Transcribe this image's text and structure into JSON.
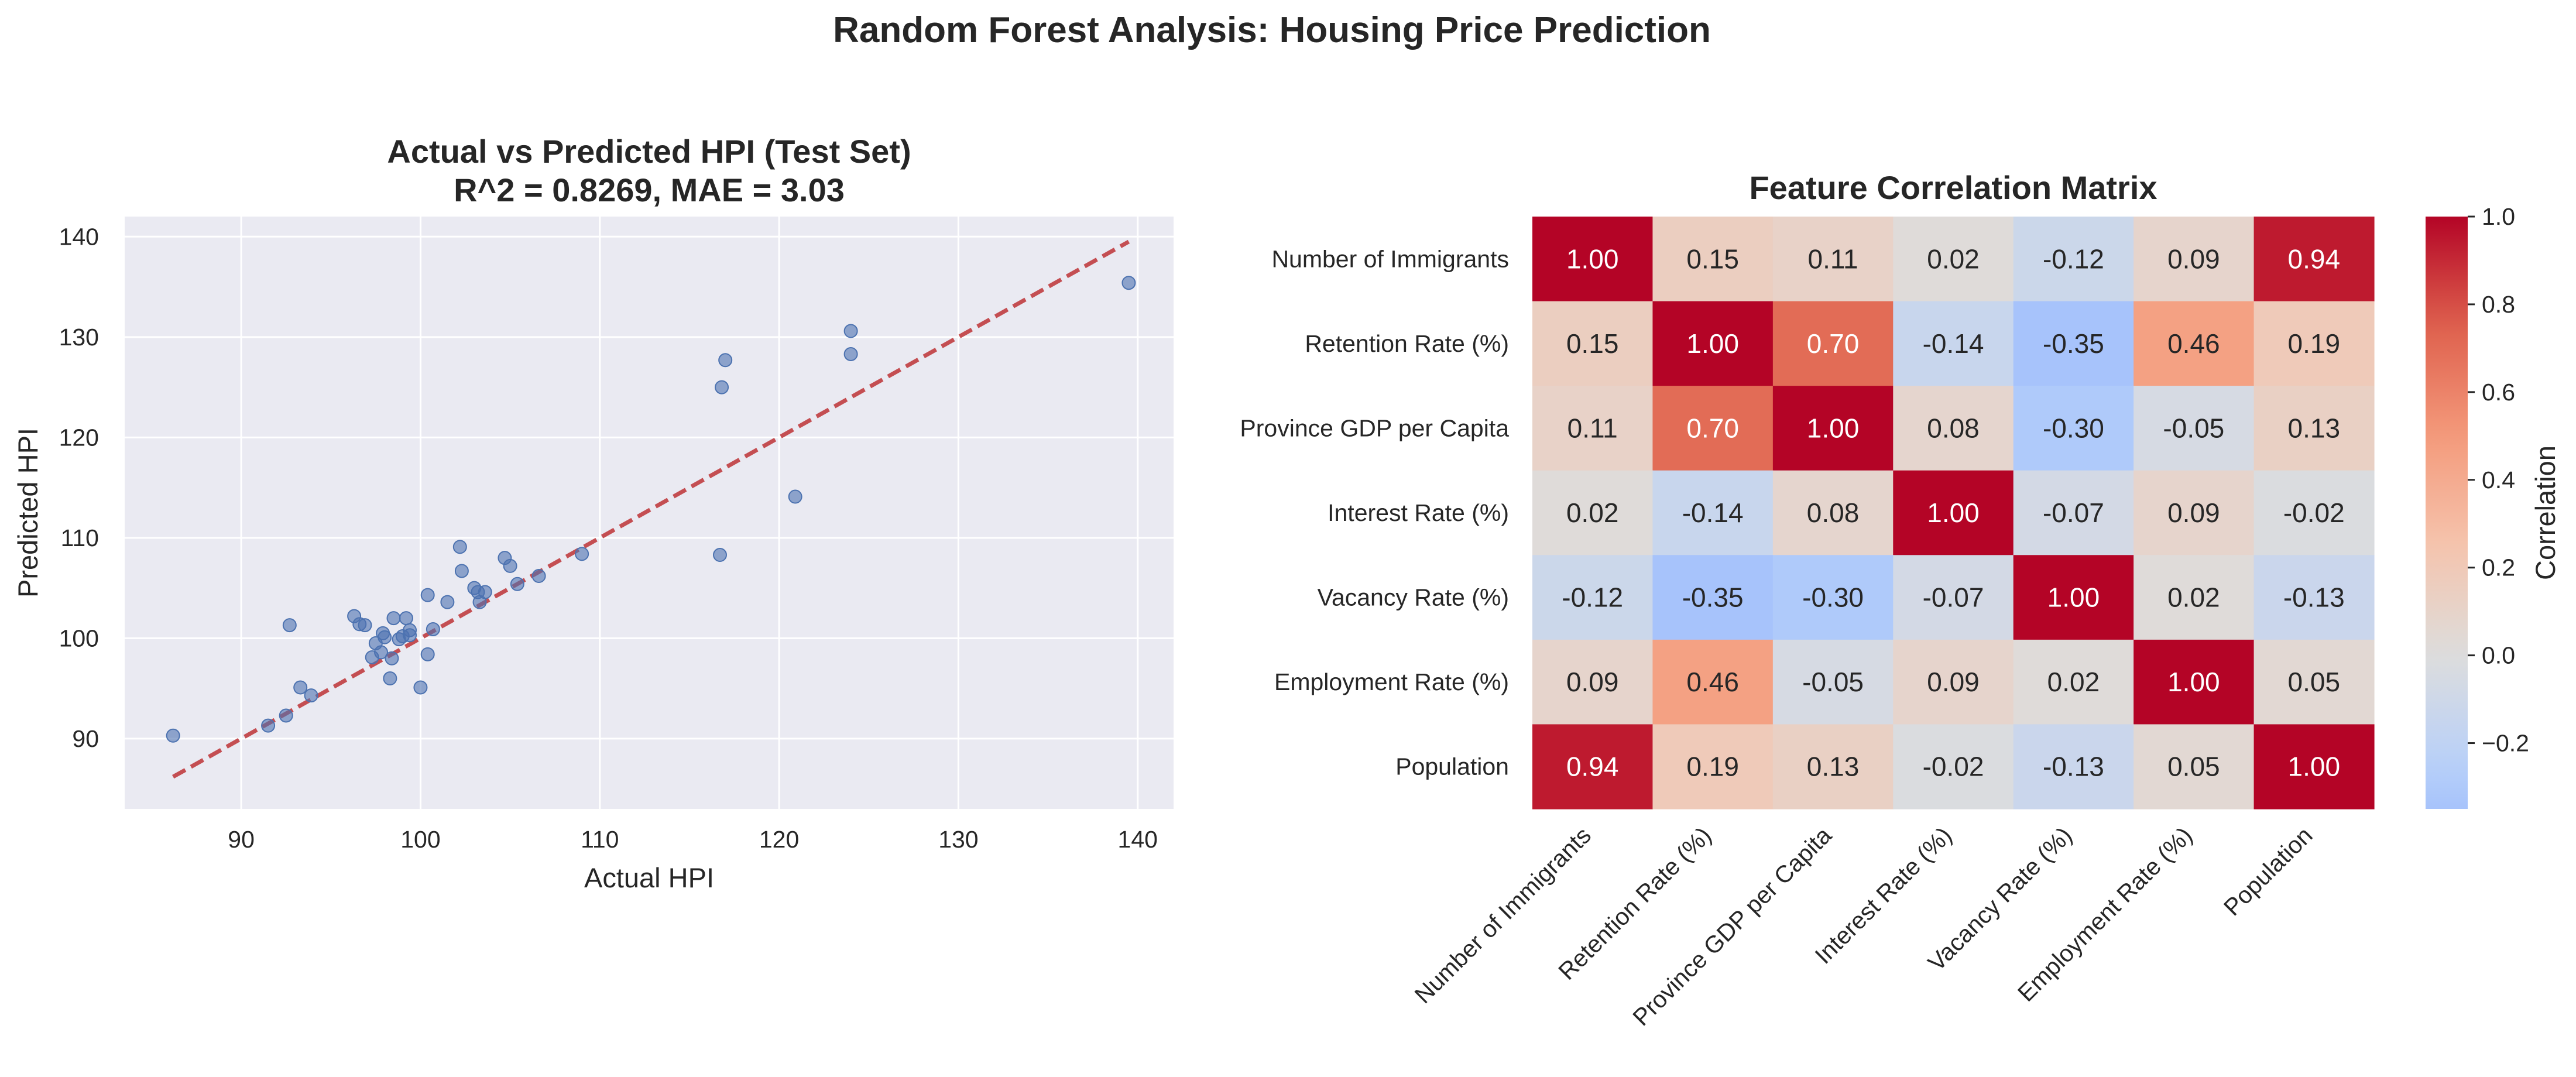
{
  "figure": {
    "suptitle": "Random Forest Analysis: Housing Price Prediction"
  },
  "chart_data": [
    {
      "type": "scatter",
      "title_line1": "Actual vs Predicted HPI (Test Set)",
      "title_line2": "R^2 = 0.8269, MAE = 3.03",
      "xlabel": "Actual HPI",
      "ylabel": "Predicted HPI",
      "xlim": [
        83.5,
        142.0
      ],
      "ylim": [
        83.0,
        142.0
      ],
      "xticks": [
        90,
        100,
        110,
        120,
        130,
        140
      ],
      "yticks": [
        90,
        100,
        110,
        120,
        130,
        140
      ],
      "grid": true,
      "point_color": "#4c72b0",
      "line_color": "#c44e52",
      "reference_line": {
        "style": "dashed",
        "from": [
          86.2,
          86.2
        ],
        "to": [
          139.5,
          139.5
        ]
      },
      "points": [
        {
          "x": 86.2,
          "y": 90.3
        },
        {
          "x": 91.5,
          "y": 91.3
        },
        {
          "x": 92.5,
          "y": 92.3
        },
        {
          "x": 92.7,
          "y": 101.3
        },
        {
          "x": 93.3,
          "y": 95.1
        },
        {
          "x": 93.9,
          "y": 94.3
        },
        {
          "x": 96.3,
          "y": 102.2
        },
        {
          "x": 96.6,
          "y": 101.4
        },
        {
          "x": 96.9,
          "y": 101.3
        },
        {
          "x": 97.3,
          "y": 98.1
        },
        {
          "x": 97.5,
          "y": 99.5
        },
        {
          "x": 97.8,
          "y": 98.6
        },
        {
          "x": 97.9,
          "y": 100.5
        },
        {
          "x": 98.0,
          "y": 100.1
        },
        {
          "x": 98.3,
          "y": 96.0
        },
        {
          "x": 98.4,
          "y": 98.0
        },
        {
          "x": 98.5,
          "y": 102.0
        },
        {
          "x": 98.8,
          "y": 99.9
        },
        {
          "x": 99.0,
          "y": 100.2
        },
        {
          "x": 99.2,
          "y": 102.0
        },
        {
          "x": 99.4,
          "y": 100.8
        },
        {
          "x": 99.4,
          "y": 100.3
        },
        {
          "x": 100.0,
          "y": 95.1
        },
        {
          "x": 100.4,
          "y": 98.4
        },
        {
          "x": 100.4,
          "y": 104.3
        },
        {
          "x": 100.7,
          "y": 100.9
        },
        {
          "x": 101.5,
          "y": 103.6
        },
        {
          "x": 102.2,
          "y": 109.1
        },
        {
          "x": 102.3,
          "y": 106.7
        },
        {
          "x": 103.0,
          "y": 105.0
        },
        {
          "x": 103.2,
          "y": 104.6
        },
        {
          "x": 103.3,
          "y": 103.6
        },
        {
          "x": 103.6,
          "y": 104.6
        },
        {
          "x": 104.7,
          "y": 108.0
        },
        {
          "x": 105.0,
          "y": 107.2
        },
        {
          "x": 105.4,
          "y": 105.4
        },
        {
          "x": 106.6,
          "y": 106.2
        },
        {
          "x": 109.0,
          "y": 108.4
        },
        {
          "x": 116.7,
          "y": 108.3
        },
        {
          "x": 116.8,
          "y": 125.0
        },
        {
          "x": 117.0,
          "y": 127.7
        },
        {
          "x": 120.9,
          "y": 114.1
        },
        {
          "x": 124.0,
          "y": 128.3
        },
        {
          "x": 124.0,
          "y": 130.6
        },
        {
          "x": 139.5,
          "y": 135.4
        }
      ]
    },
    {
      "type": "heatmap",
      "title": "Feature Correlation Matrix",
      "labels": [
        "Number of Immigrants",
        "Retention Rate (%)",
        "Province GDP per Capita",
        "Interest Rate (%)",
        "Vacancy Rate (%)",
        "Employment Rate (%)",
        "Population"
      ],
      "matrix": [
        [
          1.0,
          0.15,
          0.11,
          0.02,
          -0.12,
          0.09,
          0.94
        ],
        [
          0.15,
          1.0,
          0.7,
          -0.14,
          -0.35,
          0.46,
          0.19
        ],
        [
          0.11,
          0.7,
          1.0,
          0.08,
          -0.3,
          -0.05,
          0.13
        ],
        [
          0.02,
          -0.14,
          0.08,
          1.0,
          -0.07,
          0.09,
          -0.02
        ],
        [
          -0.12,
          -0.35,
          -0.3,
          -0.07,
          1.0,
          0.02,
          -0.13
        ],
        [
          0.09,
          0.46,
          -0.05,
          0.09,
          0.02,
          1.0,
          0.05
        ],
        [
          0.94,
          0.19,
          0.13,
          -0.02,
          -0.13,
          0.05,
          1.0
        ]
      ],
      "colormap": "coolwarm",
      "center": 0.0,
      "vmin": -0.35,
      "vmax": 1.0,
      "colorbar": {
        "label": "Correlation",
        "ticks": [
          1.0,
          0.8,
          0.6,
          0.4,
          0.2,
          0.0,
          -0.2
        ]
      }
    }
  ]
}
